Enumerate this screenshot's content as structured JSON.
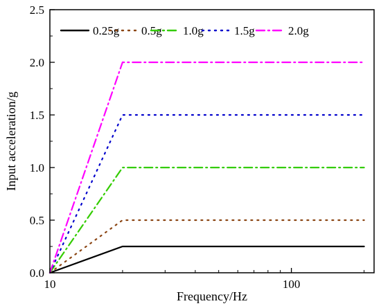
{
  "chart_data": {
    "type": "line",
    "title": "",
    "xlabel": "Frequency/Hz",
    "ylabel": "Input acceleration/g",
    "x_scale": "log",
    "xlim": [
      10,
      220
    ],
    "ylim": [
      0,
      2.5
    ],
    "x_ticks": [
      10,
      100
    ],
    "x_tick_labels": [
      "10",
      "100"
    ],
    "y_ticks": [
      0.0,
      0.5,
      1.0,
      1.5,
      2.0,
      2.5
    ],
    "y_tick_labels": [
      "0.0",
      "0.5",
      "1.0",
      "1.5",
      "2.0",
      "2.5"
    ],
    "grid": false,
    "legend_position": "top",
    "series": [
      {
        "name": "0.25g",
        "color": "#000000",
        "dash": "solid",
        "x": [
          10,
          20,
          200
        ],
        "y": [
          0,
          0.25,
          0.25
        ]
      },
      {
        "name": "0.5g",
        "color": "#8b4513",
        "dash": "dot",
        "x": [
          10,
          20,
          200
        ],
        "y": [
          0,
          0.5,
          0.5
        ]
      },
      {
        "name": "1.0g",
        "color": "#33cc00",
        "dash": "dashdot",
        "x": [
          10,
          20,
          200
        ],
        "y": [
          0,
          1.0,
          1.0
        ]
      },
      {
        "name": "1.5g",
        "color": "#0000cc",
        "dash": "dot",
        "x": [
          10,
          20,
          200
        ],
        "y": [
          0,
          1.5,
          1.5
        ]
      },
      {
        "name": "2.0g",
        "color": "#ff00ff",
        "dash": "dashdot",
        "x": [
          10,
          20,
          200
        ],
        "y": [
          0,
          2.0,
          2.0
        ]
      }
    ]
  }
}
